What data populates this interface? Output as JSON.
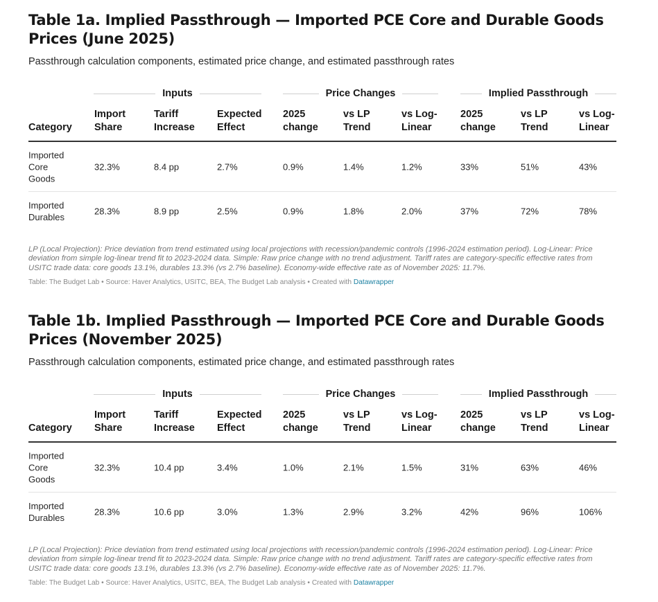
{
  "tables": [
    {
      "title": "Table 1a. Implied Passthrough — Imported PCE Core and Durable Goods Prices (June 2025)",
      "subtitle": "Passthrough calculation components, estimated price change, and estimated passthrough rates",
      "groups": [
        "Inputs",
        "Price Changes",
        "Implied Passthrough"
      ],
      "headers": [
        "Category",
        "Import Share",
        "Tariff Increase",
        "Expected Effect",
        "2025 change",
        "vs LP Trend",
        "vs Log-Linear",
        "2025 change",
        "vs LP Trend",
        "vs Log-Linear"
      ],
      "rows": [
        [
          "Imported Core Goods",
          "32.3%",
          "8.4 pp",
          "2.7%",
          "0.9%",
          "1.4%",
          "1.2%",
          "33%",
          "51%",
          "43%"
        ],
        [
          "Imported Durables",
          "28.3%",
          "8.9 pp",
          "2.5%",
          "0.9%",
          "1.8%",
          "2.0%",
          "37%",
          "72%",
          "78%"
        ]
      ],
      "notes": "LP (Local Projection): Price deviation from trend estimated using local projections with recession/pandemic controls (1996-2024 estimation period). Log-Linear: Price deviation from simple log-linear trend fit to 2023-2024 data. Simple: Raw price change with no trend adjustment. Tariff rates are category-specific effective rates from USITC trade data: core goods 13.1%, durables 13.3% (vs 2.7% baseline). Economy-wide effective rate as of November 2025: 11.7%.",
      "source_text": "Table: The Budget Lab • Source: Haver Analytics, USITC, BEA, The Budget Lab analysis • Created with ",
      "source_link": "Datawrapper"
    },
    {
      "title": "Table 1b. Implied Passthrough — Imported PCE Core and Durable Goods Prices (November 2025)",
      "subtitle": "Passthrough calculation components, estimated price change, and estimated passthrough rates",
      "groups": [
        "Inputs",
        "Price Changes",
        "Implied Passthrough"
      ],
      "headers": [
        "Category",
        "Import Share",
        "Tariff Increase",
        "Expected Effect",
        "2025 change",
        "vs LP Trend",
        "vs Log-Linear",
        "2025 change",
        "vs LP Trend",
        "vs Log-Linear"
      ],
      "rows": [
        [
          "Imported Core Goods",
          "32.3%",
          "10.4 pp",
          "3.4%",
          "1.0%",
          "2.1%",
          "1.5%",
          "31%",
          "63%",
          "46%"
        ],
        [
          "Imported Durables",
          "28.3%",
          "10.6 pp",
          "3.0%",
          "1.3%",
          "2.9%",
          "3.2%",
          "42%",
          "96%",
          "106%"
        ]
      ],
      "notes": "LP (Local Projection): Price deviation from trend estimated using local projections with recession/pandemic controls (1996-2024 estimation period). Log-Linear: Price deviation from simple log-linear trend fit to 2023-2024 data. Simple: Raw price change with no trend adjustment. Tariff rates are category-specific effective rates from USITC trade data: core goods 13.1%, durables 13.3% (vs 2.7% baseline). Economy-wide effective rate as of November 2025: 11.7%.",
      "source_text": "Table: The Budget Lab • Source: Haver Analytics, USITC, BEA, The Budget Lab analysis • Created with ",
      "source_link": "Datawrapper"
    }
  ],
  "colors": {
    "text": "#181818",
    "notes": "#747474",
    "source": "#8a8a8a",
    "link": "#1d81a2",
    "header_rule": "#333333",
    "row_rule": "#e3e3e3"
  }
}
